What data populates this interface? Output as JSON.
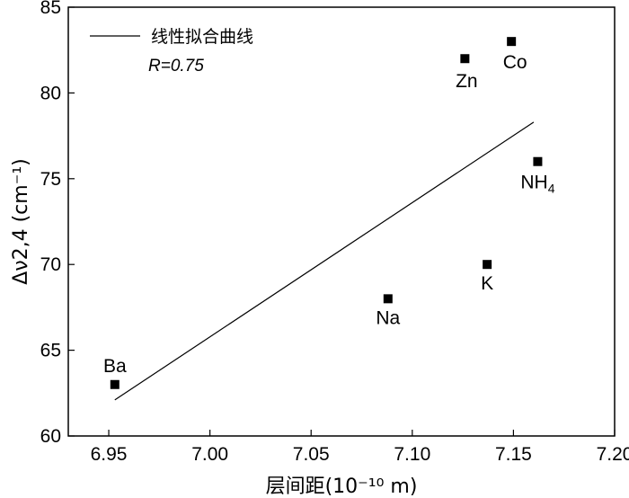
{
  "chart_data": {
    "type": "scatter",
    "title": "",
    "xlabel": "层间距(10⁻¹⁰ m)",
    "ylabel": "Δν2,4 (cm⁻¹)",
    "xlim": [
      6.93,
      7.2
    ],
    "ylim": [
      60,
      85
    ],
    "xticks": [
      "6.95",
      "7.00",
      "7.05",
      "7.10",
      "7.15",
      "7.20"
    ],
    "yticks": [
      "60",
      "65",
      "70",
      "75",
      "80",
      "85"
    ],
    "grid": false,
    "legend_position": "top-left",
    "points": [
      {
        "label": "Ba",
        "x": 6.953,
        "y": 63
      },
      {
        "label": "Na",
        "x": 7.088,
        "y": 68
      },
      {
        "label": "K",
        "x": 7.137,
        "y": 70
      },
      {
        "label": "Zn",
        "x": 7.126,
        "y": 82
      },
      {
        "label": "Co",
        "x": 7.149,
        "y": 83
      },
      {
        "label": "NH4",
        "x": 7.162,
        "y": 76
      }
    ],
    "fit_line": {
      "name": "线性拟合曲线",
      "x": [
        6.953,
        7.16
      ],
      "y": [
        62.1,
        78.3
      ]
    },
    "annotation": "R=0.75"
  }
}
